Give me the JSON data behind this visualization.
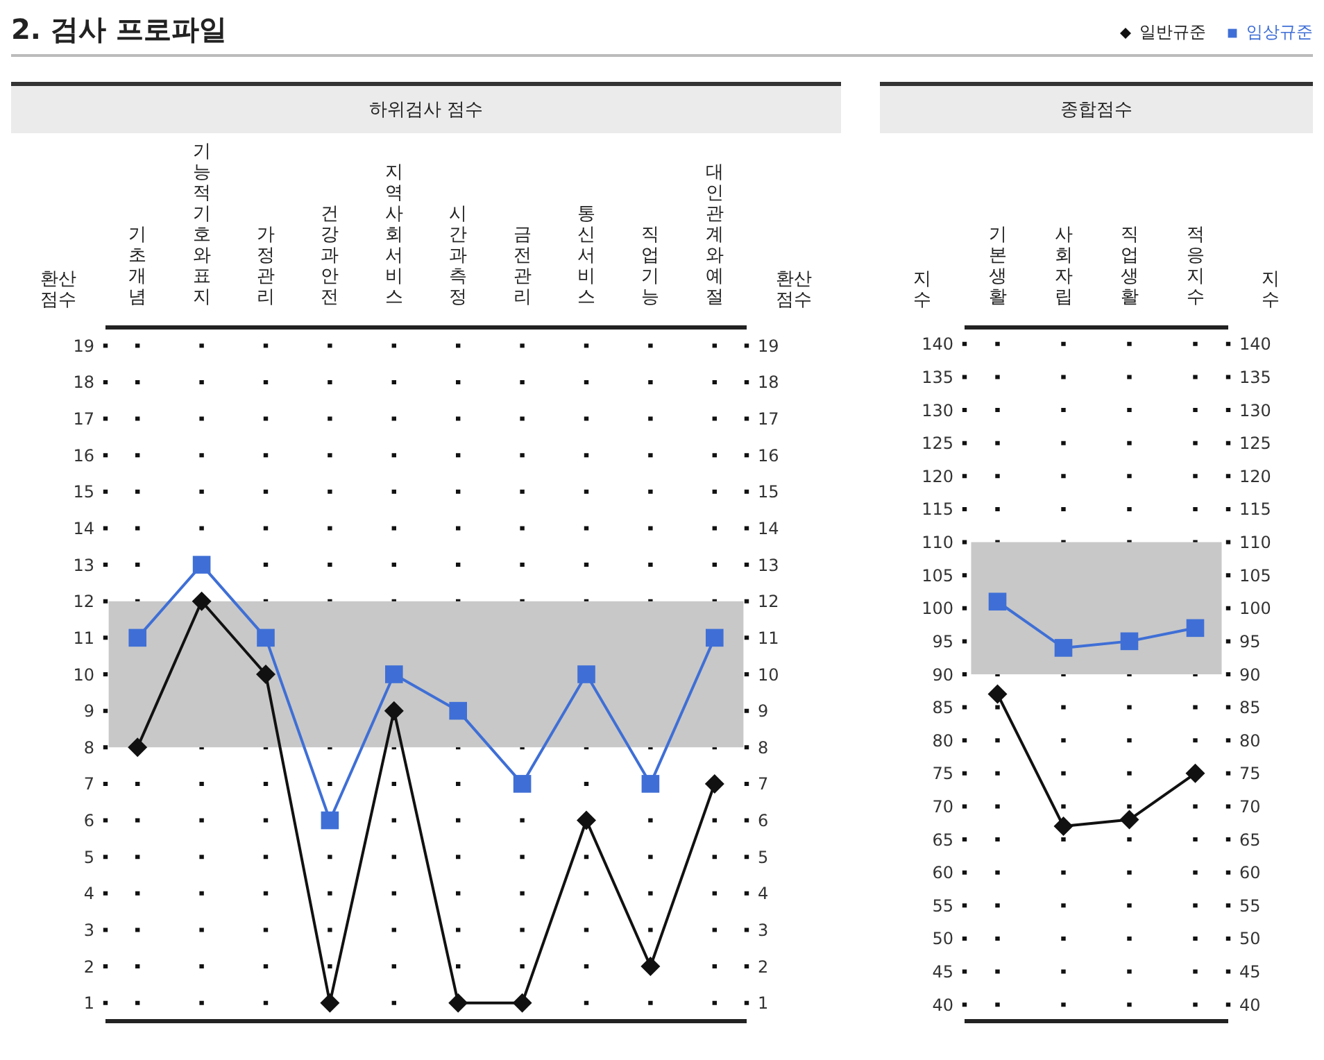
{
  "chart_data": [
    {
      "type": "line",
      "title": "하위검사 점수",
      "annotations": [
        "2. 검사 프로파일"
      ],
      "ylabel": "환산점수",
      "y2label": "환산점수",
      "categories": [
        "기초개념",
        "기능적기호와표지",
        "가정관리",
        "건강과안전",
        "지역사회서비스",
        "시간과측정",
        "금전관리",
        "통신서비스",
        "직업기능",
        "대인관계와예절"
      ],
      "series": [
        {
          "color": "#111111",
          "marker": "diamond",
          "values": [
            8,
            12,
            10,
            1,
            9,
            1,
            1,
            6,
            2,
            7
          ]
        },
        {
          "color": "#3f6fd6",
          "marker": "square",
          "values": [
            11,
            13,
            11,
            6,
            10,
            9,
            7,
            10,
            7,
            11
          ]
        }
      ],
      "ylim": [
        0.5,
        19.5
      ],
      "yticks": [
        1,
        2,
        3,
        4,
        5,
        6,
        7,
        8,
        9,
        10,
        11,
        12,
        13,
        14,
        15,
        16,
        17,
        18,
        19
      ],
      "y2lim": [
        0.5,
        19.5
      ],
      "y2ticks": [
        1,
        2,
        3,
        4,
        5,
        6,
        7,
        8,
        9,
        10,
        11,
        12,
        13,
        14,
        15,
        16,
        17,
        18,
        19
      ],
      "bands": [
        {
          "axis": "y",
          "from": 8,
          "to": 12,
          "color": "#c8c8c8"
        }
      ],
      "grid": "x",
      "legend": false
    },
    {
      "type": "line",
      "title": "종합점수",
      "ylabel": "지수",
      "y2label": "지수",
      "categories": [
        "기본생활",
        "사회자립",
        "직업생활",
        "적응지수"
      ],
      "series": [
        {
          "name": "일반규준",
          "color": "#111111",
          "marker": "diamond",
          "values": [
            87,
            67,
            68,
            75
          ]
        },
        {
          "name": "임상규준",
          "color": "#3f6fd6",
          "marker": "square",
          "values": [
            101,
            94,
            95,
            97
          ]
        }
      ],
      "ylim": [
        37.5,
        142.5
      ],
      "yticks": [
        40,
        45,
        50,
        55,
        60,
        65,
        70,
        75,
        80,
        85,
        90,
        95,
        100,
        105,
        110,
        115,
        120,
        125,
        130,
        135,
        140
      ],
      "y2lim": [
        37.5,
        142.5
      ],
      "y2ticks": [
        40,
        45,
        50,
        55,
        60,
        65,
        70,
        75,
        80,
        85,
        90,
        95,
        100,
        105,
        110,
        115,
        120,
        125,
        130,
        135,
        140
      ],
      "bands": [
        {
          "axis": "y",
          "from": 90,
          "to": 110,
          "color": "#c8c8c8"
        }
      ],
      "grid": "x",
      "legend": "top right"
    }
  ]
}
